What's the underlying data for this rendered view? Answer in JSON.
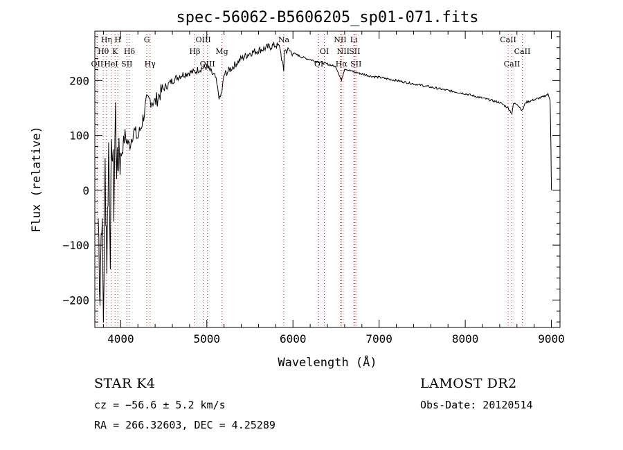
{
  "chart_data": {
    "type": "line",
    "title": "spec-56062-B5606205_sp01-071.fits",
    "xlabel": "Wavelength (Å)",
    "ylabel": "Flux (relative)",
    "xlim": [
      3700,
      9100
    ],
    "ylim": [
      -250,
      290
    ],
    "xticks": [
      4000,
      5000,
      6000,
      7000,
      8000,
      9000
    ],
    "yticks": [
      -200,
      -100,
      0,
      100,
      200
    ],
    "ytick_labels": [
      "−200",
      "−100",
      "0",
      "100",
      "200"
    ],
    "grid": false,
    "series": [
      {
        "x": [
          3740,
          3760,
          3780,
          3800,
          3820,
          3840,
          3860,
          3880,
          3900,
          3920,
          3940,
          3960,
          3980,
          4000,
          4050,
          4100,
          4150,
          4200,
          4250,
          4300,
          4350,
          4400,
          4450,
          4500,
          4600,
          4700,
          4800,
          4850,
          4900,
          5000,
          5100,
          5150,
          5175,
          5200,
          5300,
          5400,
          5500,
          5600,
          5700,
          5800,
          5850,
          5893,
          5900,
          5950,
          6000,
          6100,
          6200,
          6300,
          6400,
          6500,
          6563,
          6600,
          6700,
          6800,
          6900,
          7000,
          7200,
          7400,
          7600,
          7800,
          8000,
          8200,
          8400,
          8498,
          8542,
          8560,
          8600,
          8662,
          8700,
          8800,
          8900,
          8960,
          8985,
          8995,
          9000
        ],
        "y": [
          -50,
          -180,
          -30,
          -230,
          40,
          -120,
          80,
          -90,
          100,
          -20,
          140,
          20,
          90,
          60,
          100,
          80,
          110,
          95,
          125,
          160,
          165,
          160,
          175,
          185,
          200,
          210,
          215,
          215,
          220,
          225,
          205,
          165,
          180,
          210,
          225,
          240,
          250,
          255,
          260,
          265,
          260,
          215,
          255,
          255,
          250,
          243,
          238,
          234,
          230,
          225,
          200,
          222,
          216,
          212,
          208,
          206,
          200,
          194,
          188,
          182,
          176,
          168,
          160,
          150,
          140,
          158,
          158,
          145,
          160,
          165,
          170,
          175,
          165,
          80,
          0
        ]
      }
    ],
    "lines": [
      {
        "x": 3727,
        "label": "OII",
        "row": 3
      },
      {
        "x": 3798,
        "label": "Hθ",
        "row": 2
      },
      {
        "x": 3835,
        "label": "Hη",
        "row": 1
      },
      {
        "x": 3889,
        "label": "HeI",
        "row": 3
      },
      {
        "x": 3934,
        "label": "K",
        "row": 2
      },
      {
        "x": 3968,
        "label": "H",
        "row": 1
      },
      {
        "x": 4072,
        "label": "SII",
        "row": 3
      },
      {
        "x": 4102,
        "label": "Hδ",
        "row": 2
      },
      {
        "x": 4304,
        "label": "G",
        "row": 1
      },
      {
        "x": 4341,
        "label": "Hγ",
        "row": 4
      },
      {
        "x": 4861,
        "label": "Hβ",
        "row": 2
      },
      {
        "x": 4959,
        "label": "OIII",
        "row": 1
      },
      {
        "x": 5007,
        "label": "OIII",
        "row": 3
      },
      {
        "x": 5175,
        "label": "Mg",
        "row": 2
      },
      {
        "x": 5893,
        "label": "Na",
        "row": 1
      },
      {
        "x": 6300,
        "label": "OI",
        "row": 3
      },
      {
        "x": 6364,
        "label": "OI",
        "row": 2
      },
      {
        "x": 6548,
        "label": "NII",
        "row": 1
      },
      {
        "x": 6563,
        "label": "Hα",
        "row": 3
      },
      {
        "x": 6583,
        "label": "NII",
        "row": 2
      },
      {
        "x": 6707,
        "label": "Li",
        "row": 1
      },
      {
        "x": 6716,
        "label": "SII",
        "row": 2
      },
      {
        "x": 6731,
        "label": "SII",
        "row": 3
      },
      {
        "x": 8498,
        "label": "CaII",
        "row": 1
      },
      {
        "x": 8542,
        "label": "CaII",
        "row": 3
      },
      {
        "x": 8662,
        "label": "CaII",
        "row": 2
      }
    ]
  },
  "info": {
    "class": "STAR    K4",
    "cz": "cz = −56.6 ± 5.2 km/s",
    "radec": "RA = 266.32603, DEC =   4.25289",
    "release": "LAMOST  DR2",
    "obsdate": "Obs-Date: 20120514"
  }
}
